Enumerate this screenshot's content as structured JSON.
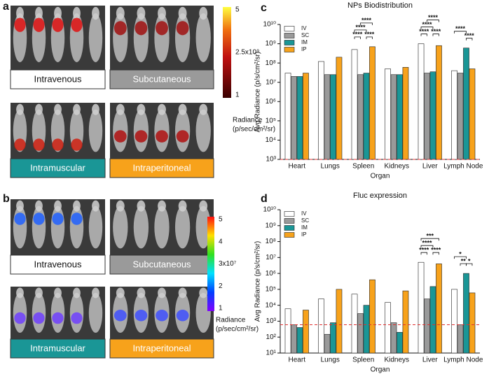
{
  "panel_letters": [
    "a",
    "b",
    "c",
    "d"
  ],
  "imaging": [
    {
      "groups": [
        "Intravenous",
        "Subcutaneous",
        "Intramuscular",
        "Intraperitoneal"
      ],
      "colorbar_labels": [
        "5",
        "2.5x10⁹",
        "1"
      ],
      "radiance_title": [
        "Radiance",
        "(p/sec/cm²/sr)"
      ]
    },
    {
      "groups": [
        "Intravenous",
        "Subcutaneous",
        "Intramuscular",
        "Intraperitoneal"
      ],
      "colorbar_labels": [
        "5",
        "4",
        "3x10⁷",
        "2",
        "1"
      ],
      "radiance_title": [
        "Radiance",
        "(p/sec/cm²/sr)"
      ]
    }
  ],
  "chart_data": [
    {
      "type": "bar",
      "title": "NPs Biodistribution",
      "x_label": "Organ",
      "y_label": "Avg Radiance (p/s/cm²/sr)",
      "log_scale": true,
      "legend": "top-left",
      "categories": [
        "Heart",
        "Lungs",
        "Spleen",
        "Kidneys",
        "Liver",
        "Lymph Node"
      ],
      "series": [
        {
          "name": "IV",
          "color": "#ffffff",
          "values": [
            30000000,
            120000000,
            500000000,
            50000000,
            1000000000,
            40000000
          ]
        },
        {
          "name": "SC",
          "color": "#9a9a9a",
          "values": [
            20000000,
            25000000,
            25000000,
            25000000,
            30000000,
            30000000
          ]
        },
        {
          "name": "IM",
          "color": "#1a9696",
          "values": [
            20000000,
            25000000,
            30000000,
            25000000,
            35000000,
            600000000
          ]
        },
        {
          "name": "IP",
          "color": "#f7a21b",
          "values": [
            30000000,
            200000000,
            700000000,
            60000000,
            800000000,
            50000000
          ]
        }
      ],
      "ylim": [
        1000,
        10000000000
      ],
      "yticks": [
        {
          "value": 1000,
          "label": "10³"
        },
        {
          "value": 10000,
          "label": "10⁴"
        },
        {
          "value": 100000,
          "label": "10⁵"
        },
        {
          "value": 1000000,
          "label": "10⁶"
        },
        {
          "value": 10000000,
          "label": "10⁷"
        },
        {
          "value": 100000000,
          "label": "10⁸"
        },
        {
          "value": 1000000000,
          "label": "10⁹"
        },
        {
          "value": 10000000000,
          "label": "10¹⁰"
        }
      ],
      "reference_line": {
        "value": 1000,
        "color": "#e03030"
      },
      "significance": [
        {
          "label": "****"
        },
        {
          "label": "****"
        },
        {
          "label": "****"
        },
        {
          "label": "****"
        },
        {
          "label": "****"
        },
        {
          "label": "****"
        },
        {
          "label": "****"
        },
        {
          "label": "****"
        },
        {
          "label": "****"
        },
        {
          "label": "****"
        }
      ]
    },
    {
      "type": "bar",
      "title": "Fluc expression",
      "x_label": "Organ",
      "y_label": "Avg Radiance (p/s/cm²/sr)",
      "log_scale": true,
      "legend": "top-left",
      "categories": [
        "Heart",
        "Lungs",
        "Spleen",
        "Kidneys",
        "Liver",
        "Lymph Node"
      ],
      "series": [
        {
          "name": "IV",
          "color": "#ffffff",
          "values": [
            6000,
            25000,
            50000,
            15000,
            5000000,
            100000
          ]
        },
        {
          "name": "SC",
          "color": "#9a9a9a",
          "values": [
            600,
            150,
            3000,
            800,
            25000,
            600
          ]
        },
        {
          "name": "IM",
          "color": "#1a9696",
          "values": [
            400,
            800,
            10000,
            200,
            150000,
            1000000
          ]
        },
        {
          "name": "IP",
          "color": "#f7a21b",
          "values": [
            5000,
            100000,
            400000,
            80000,
            4000000,
            60000
          ]
        }
      ],
      "ylim": [
        10,
        10000000000
      ],
      "yticks": [
        {
          "value": 10,
          "label": "10¹"
        },
        {
          "value": 100,
          "label": "10²"
        },
        {
          "value": 1000,
          "label": "10³"
        },
        {
          "value": 10000,
          "label": "10⁴"
        },
        {
          "value": 100000,
          "label": "10⁵"
        },
        {
          "value": 1000000,
          "label": "10⁶"
        },
        {
          "value": 10000000,
          "label": "10⁷"
        },
        {
          "value": 100000000,
          "label": "10⁸"
        },
        {
          "value": 1000000000,
          "label": "10⁹"
        },
        {
          "value": 10000000000,
          "label": "10¹⁰"
        }
      ],
      "reference_line": {
        "value": 600,
        "color": "#e03030"
      },
      "significance": [
        {
          "label": "***"
        },
        {
          "label": "****"
        },
        {
          "label": "****"
        },
        {
          "label": "****"
        },
        {
          "label": "*"
        },
        {
          "label": "**"
        },
        {
          "label": "*"
        }
      ]
    }
  ]
}
